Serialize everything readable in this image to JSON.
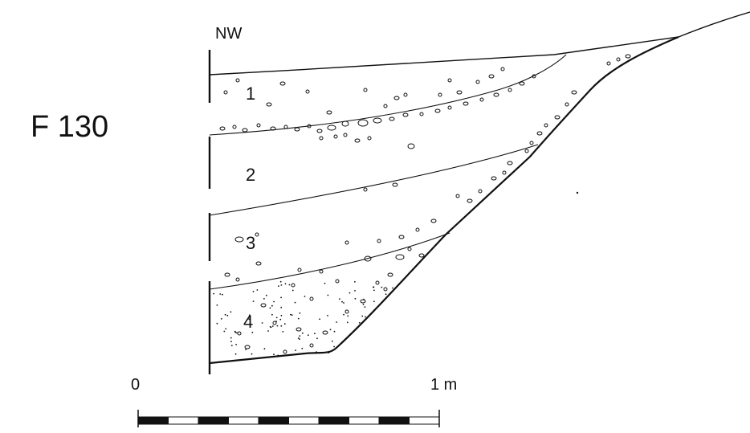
{
  "feature_id": "F 130",
  "orientation": "NW",
  "layers": [
    {
      "label": "1"
    },
    {
      "label": "2"
    },
    {
      "label": "3"
    },
    {
      "label": "4"
    }
  ],
  "scale": {
    "start_label": "0",
    "end_label": "1 m"
  }
}
